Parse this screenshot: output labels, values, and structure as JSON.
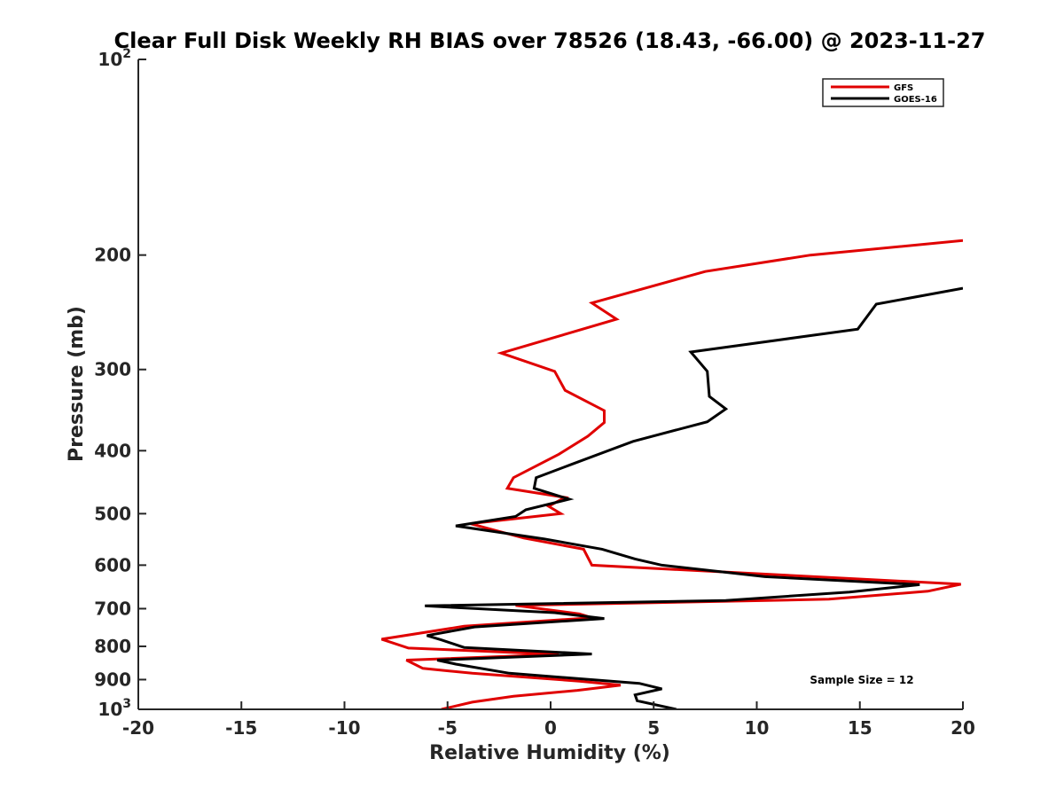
{
  "chart_data": {
    "type": "line",
    "title": "Clear Full Disk Weekly RH BIAS over 78526 (18.43, -66.00) @ 2023-11-27",
    "xlabel": "Relative Humidity (%)",
    "ylabel": "Pressure (mb)",
    "xlim": [
      -20,
      20
    ],
    "ylim": [
      100,
      1000
    ],
    "y_scale": "log",
    "y_reversed": true,
    "x_ticks": [
      "-20",
      "-15",
      "-10",
      "-5",
      "0",
      "5",
      "10",
      "15",
      "20"
    ],
    "y_ticks": [
      {
        "value": 100,
        "base": "10",
        "exp": "2"
      },
      {
        "value": 200,
        "label": "200"
      },
      {
        "value": 300,
        "label": "300"
      },
      {
        "value": 400,
        "label": "400"
      },
      {
        "value": 500,
        "label": "500"
      },
      {
        "value": 600,
        "label": "600"
      },
      {
        "value": 700,
        "label": "700"
      },
      {
        "value": 800,
        "label": "800"
      },
      {
        "value": 900,
        "label": "900"
      },
      {
        "value": 1000,
        "base": "10",
        "exp": "3"
      }
    ],
    "grid": false,
    "legend_position": "top-right",
    "series": [
      {
        "name": "GFS",
        "color": "#e00000",
        "points": [
          [
            20.0,
            190
          ],
          [
            12.6,
            200
          ],
          [
            7.5,
            212
          ],
          [
            2.0,
            237
          ],
          [
            3.2,
            251
          ],
          [
            -2.4,
            283
          ],
          [
            0.2,
            302
          ],
          [
            0.7,
            323
          ],
          [
            2.6,
            347
          ],
          [
            2.6,
            362
          ],
          [
            1.8,
            380
          ],
          [
            0.4,
            405
          ],
          [
            -1.8,
            440
          ],
          [
            -2.1,
            457
          ],
          [
            0.7,
            472
          ],
          [
            -0.1,
            487
          ],
          [
            0.5,
            500
          ],
          [
            -3.9,
            518
          ],
          [
            -1.3,
            545
          ],
          [
            1.6,
            567
          ],
          [
            2.0,
            600
          ],
          [
            19.9,
            642
          ],
          [
            18.3,
            658
          ],
          [
            13.5,
            677
          ],
          [
            -1.7,
            692
          ],
          [
            1.4,
            713
          ],
          [
            2.0,
            723
          ],
          [
            -4.2,
            745
          ],
          [
            -8.2,
            780
          ],
          [
            -6.9,
            805
          ],
          [
            0.4,
            823
          ],
          [
            -7.0,
            840
          ],
          [
            -6.2,
            865
          ],
          [
            -3.8,
            880
          ],
          [
            1.4,
            905
          ],
          [
            3.4,
            918
          ],
          [
            1.3,
            935
          ],
          [
            -1.8,
            955
          ],
          [
            -3.8,
            975
          ],
          [
            -5.3,
            1000
          ]
        ]
      },
      {
        "name": "GOES-16",
        "color": "#000000",
        "points": [
          [
            20.0,
            225
          ],
          [
            15.8,
            238
          ],
          [
            14.9,
            260
          ],
          [
            6.8,
            282
          ],
          [
            7.6,
            302
          ],
          [
            7.7,
            330
          ],
          [
            8.5,
            345
          ],
          [
            7.6,
            361
          ],
          [
            4.0,
            387
          ],
          [
            1.0,
            420
          ],
          [
            -0.7,
            440
          ],
          [
            -0.8,
            457
          ],
          [
            0.9,
            475
          ],
          [
            -1.2,
            493
          ],
          [
            -1.7,
            505
          ],
          [
            -4.6,
            522
          ],
          [
            -0.3,
            547
          ],
          [
            2.5,
            567
          ],
          [
            4.1,
            587
          ],
          [
            5.4,
            600
          ],
          [
            10.4,
            625
          ],
          [
            17.9,
            643
          ],
          [
            14.5,
            660
          ],
          [
            8.5,
            680
          ],
          [
            -6.1,
            693
          ],
          [
            0.2,
            710
          ],
          [
            2.6,
            725
          ],
          [
            -3.7,
            747
          ],
          [
            -6.0,
            770
          ],
          [
            -5.3,
            782
          ],
          [
            -4.2,
            803
          ],
          [
            2.0,
            822
          ],
          [
            -5.5,
            840
          ],
          [
            -4.6,
            852
          ],
          [
            -2.0,
            880
          ],
          [
            4.3,
            912
          ],
          [
            5.4,
            930
          ],
          [
            4.1,
            950
          ],
          [
            4.2,
            970
          ],
          [
            6.1,
            1000
          ]
        ]
      }
    ],
    "annotations": [
      "Sample Size = 12"
    ]
  }
}
